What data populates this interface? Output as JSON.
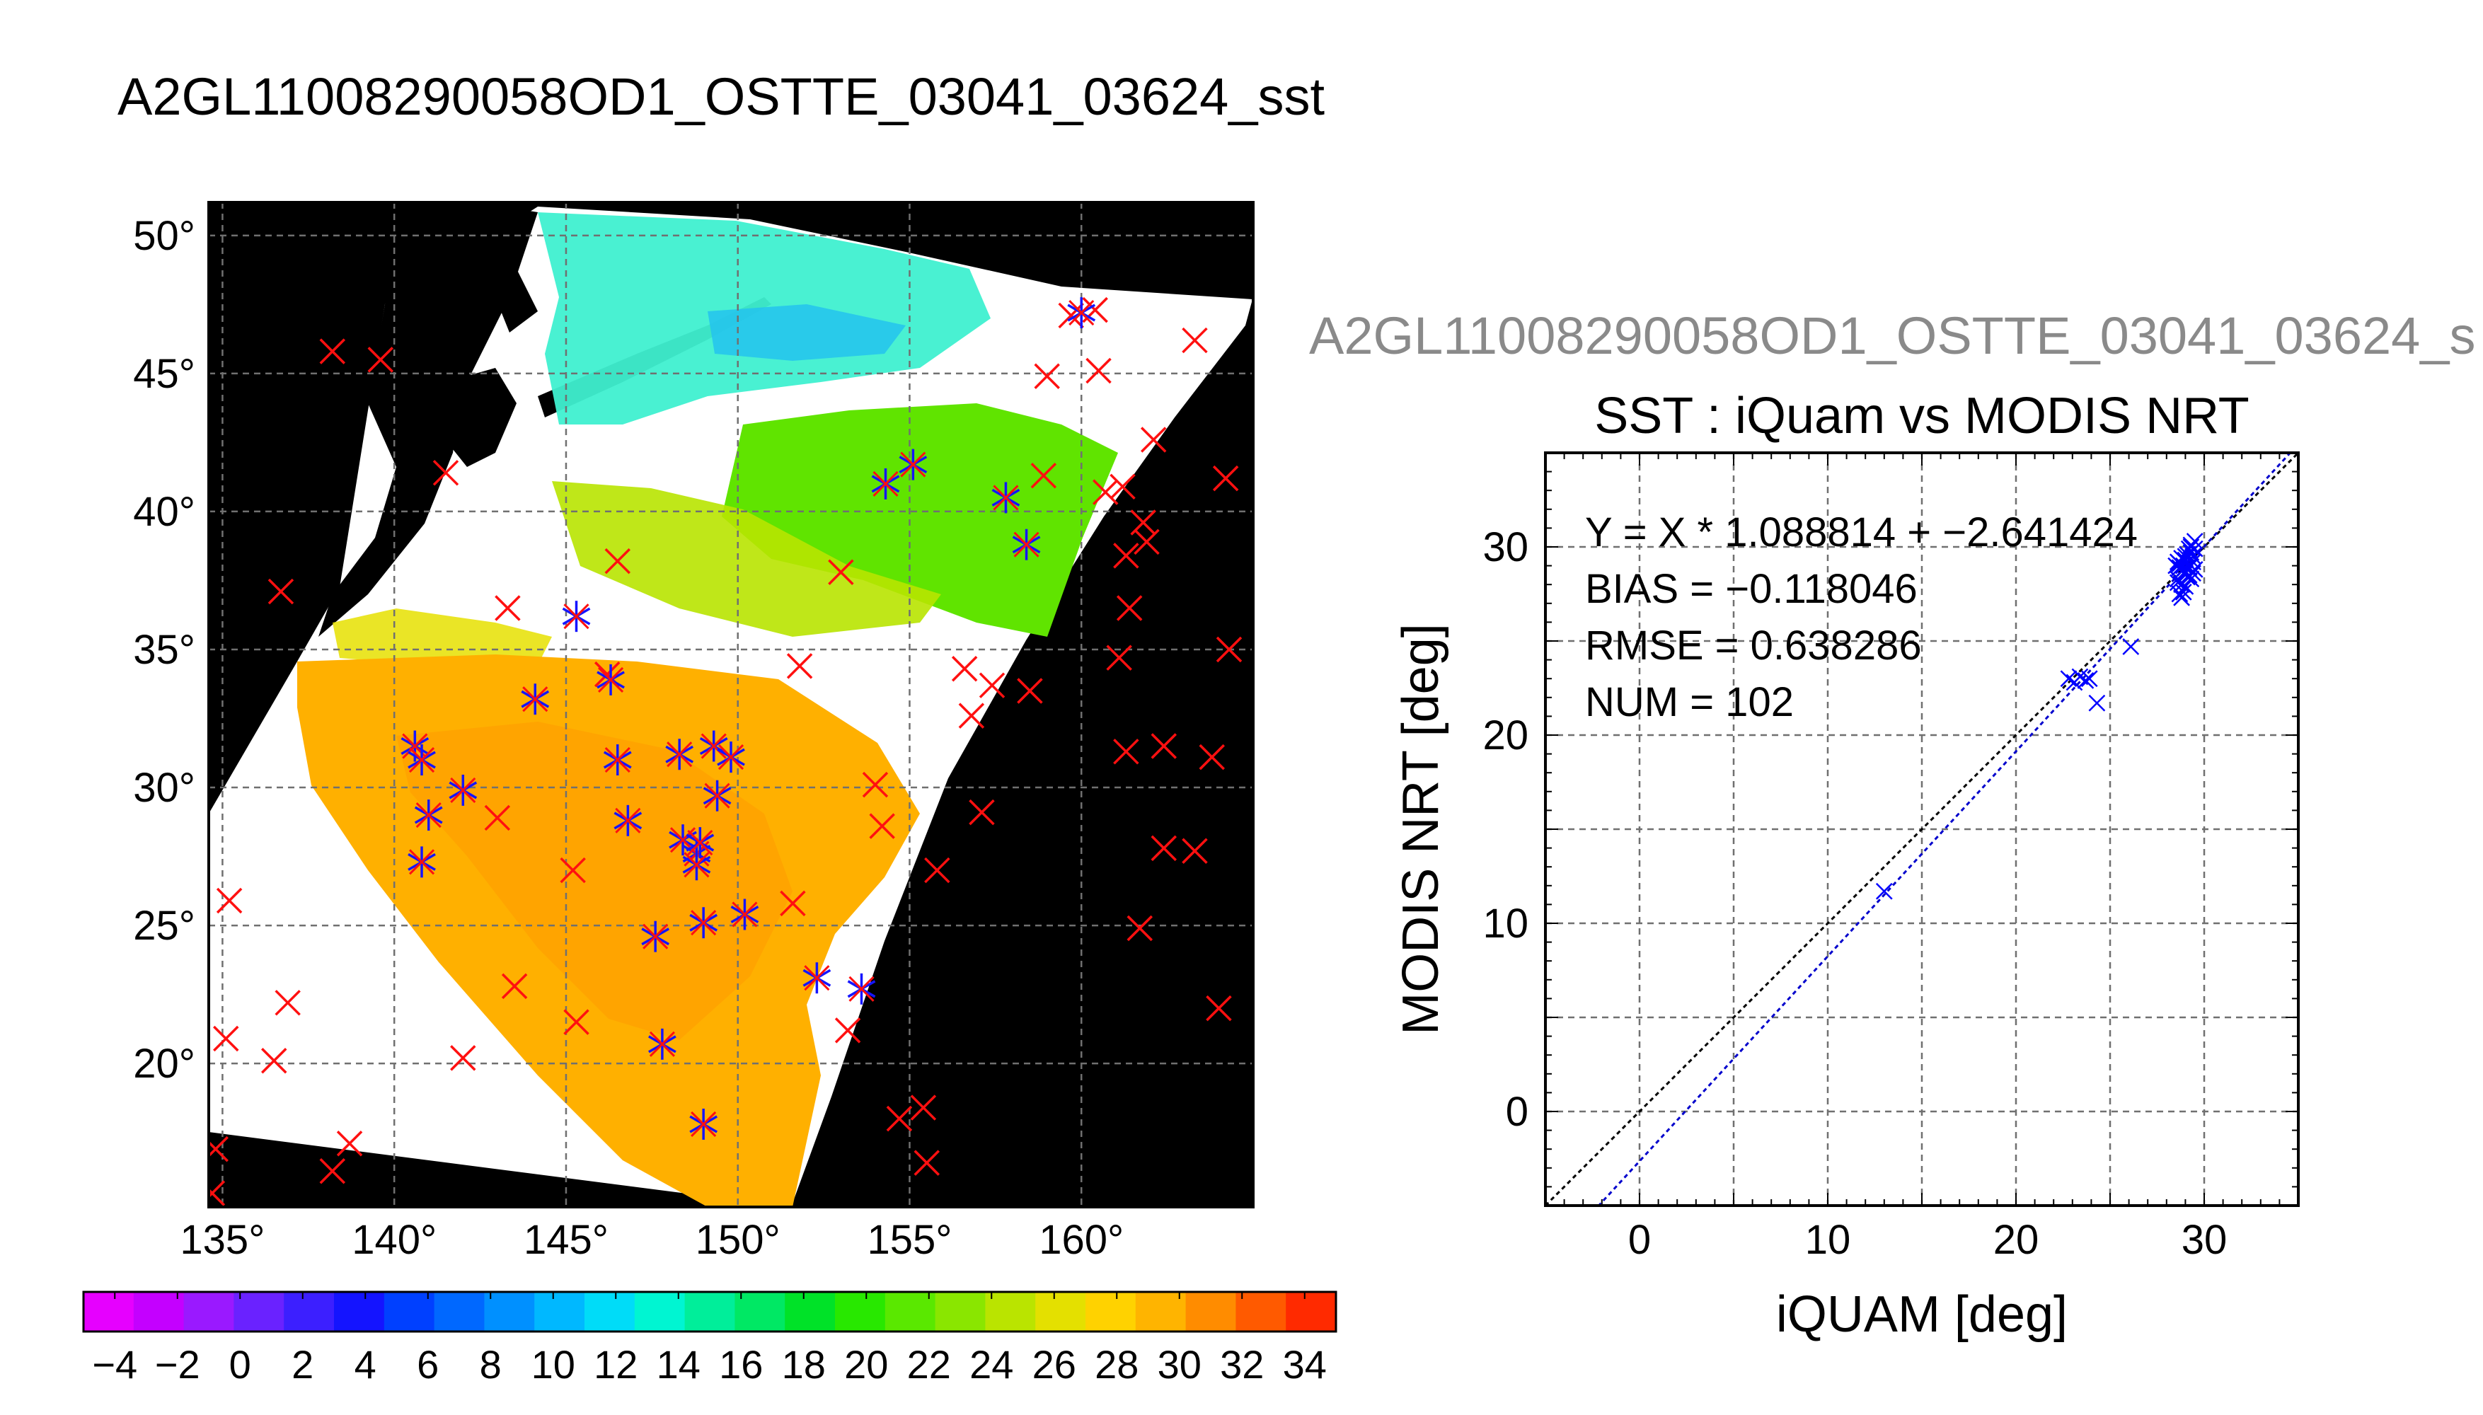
{
  "header": {
    "title": "A2GL11008290058OD1_OSTTE_03041_03624_sst"
  },
  "chart_data": [
    {
      "type": "heatmap",
      "title": "",
      "lon_ticks": [
        "135°",
        "140°",
        "145°",
        "150°",
        "155°",
        "160°"
      ],
      "lat_ticks": [
        "50°",
        "45°",
        "40°",
        "35°",
        "30°",
        "25°",
        "20°"
      ],
      "lon_values": [
        135,
        140,
        145,
        150,
        155,
        160
      ],
      "lat_values": [
        50,
        45,
        40,
        35,
        30,
        25,
        20
      ],
      "lon_range": [
        134.6,
        165.0
      ],
      "lat_range": [
        14.8,
        51.2
      ],
      "grid": true,
      "land_color": "#000000",
      "nodata_color": "#ffffff",
      "markers": {
        "red_x": [
          [
            138.2,
            45.8
          ],
          [
            139.6,
            45.5
          ],
          [
            141.5,
            41.4
          ],
          [
            136.7,
            37.1
          ],
          [
            135.2,
            25.9
          ],
          [
            135.1,
            20.9
          ],
          [
            136.9,
            22.2
          ],
          [
            136.5,
            20.1
          ],
          [
            138.2,
            16.1
          ],
          [
            138.7,
            17.1
          ],
          [
            134.8,
            16.9
          ],
          [
            134.7,
            15.3
          ],
          [
            142.0,
            20.2
          ],
          [
            143.3,
            36.5
          ],
          [
            146.5,
            38.2
          ],
          [
            143.0,
            28.9
          ],
          [
            143.5,
            22.8
          ],
          [
            145.2,
            27.0
          ],
          [
            145.3,
            21.5
          ],
          [
            146.2,
            34.1
          ],
          [
            151.8,
            34.4
          ],
          [
            151.6,
            25.8
          ],
          [
            154.0,
            30.1
          ],
          [
            154.2,
            28.6
          ],
          [
            153.0,
            37.8
          ],
          [
            153.2,
            21.2
          ],
          [
            154.7,
            18.0
          ],
          [
            155.4,
            18.4
          ],
          [
            155.5,
            16.4
          ],
          [
            155.8,
            27.0
          ],
          [
            156.6,
            34.3
          ],
          [
            156.8,
            32.6
          ],
          [
            157.1,
            29.1
          ],
          [
            157.4,
            33.7
          ],
          [
            158.5,
            33.5
          ],
          [
            158.9,
            41.3
          ],
          [
            159.0,
            44.9
          ],
          [
            159.7,
            47.1
          ],
          [
            160.4,
            47.3
          ],
          [
            160.5,
            45.1
          ],
          [
            160.7,
            40.7
          ],
          [
            161.2,
            40.9
          ],
          [
            161.3,
            38.4
          ],
          [
            161.8,
            39.6
          ],
          [
            161.9,
            38.9
          ],
          [
            162.1,
            42.6
          ],
          [
            163.3,
            46.2
          ],
          [
            164.2,
            41.2
          ],
          [
            161.1,
            34.7
          ],
          [
            161.4,
            36.5
          ],
          [
            161.3,
            31.3
          ],
          [
            162.4,
            31.5
          ],
          [
            162.4,
            27.8
          ],
          [
            163.3,
            27.7
          ],
          [
            163.8,
            31.1
          ],
          [
            161.7,
            24.9
          ],
          [
            164.0,
            22.0
          ],
          [
            164.3,
            35.0
          ]
        ],
        "blue_star": [
          [
            140.6,
            31.5
          ],
          [
            140.8,
            31.0
          ],
          [
            141.0,
            29.0
          ],
          [
            140.8,
            27.3
          ],
          [
            142.0,
            29.9
          ],
          [
            144.1,
            33.2
          ],
          [
            145.3,
            36.2
          ],
          [
            146.3,
            33.9
          ],
          [
            146.5,
            31.0
          ],
          [
            146.8,
            28.8
          ],
          [
            147.6,
            24.6
          ],
          [
            147.8,
            20.7
          ],
          [
            148.3,
            31.2
          ],
          [
            148.4,
            28.1
          ],
          [
            148.8,
            27.6
          ],
          [
            148.8,
            27.2
          ],
          [
            148.9,
            28.0
          ],
          [
            149.0,
            25.1
          ],
          [
            149.0,
            17.8
          ],
          [
            149.3,
            31.5
          ],
          [
            149.4,
            29.7
          ],
          [
            149.8,
            31.1
          ],
          [
            150.2,
            25.4
          ],
          [
            152.3,
            23.1
          ],
          [
            153.6,
            22.7
          ],
          [
            154.3,
            41.0
          ],
          [
            155.1,
            41.7
          ],
          [
            157.8,
            40.5
          ],
          [
            158.4,
            38.8
          ],
          [
            160.0,
            47.2
          ]
        ]
      },
      "colorbar": {
        "ticks": [
          "−4",
          "−2",
          "0",
          "2",
          "4",
          "6",
          "8",
          "10",
          "12",
          "14",
          "16",
          "18",
          "20",
          "22",
          "24",
          "26",
          "28",
          "30",
          "32",
          "34"
        ],
        "range": [
          -5,
          35
        ],
        "colors": [
          "#e600ff",
          "#c400ff",
          "#9a19ff",
          "#6a22ff",
          "#3c1fff",
          "#1414ff",
          "#0040ff",
          "#0068ff",
          "#0090ff",
          "#00b8ff",
          "#00dcf8",
          "#00f5d2",
          "#00ee9a",
          "#00e864",
          "#00e228",
          "#28e800",
          "#5ae800",
          "#8ae600",
          "#bae400",
          "#e4e000",
          "#ffd200",
          "#ffb400",
          "#ff8c00",
          "#ff5a00",
          "#ff2a00"
        ]
      }
    },
    {
      "type": "scatter",
      "suptitle": "A2GL11008290058OD1_OSTTE_03041_03624_s",
      "title": "SST : iQuam vs MODIS NRT",
      "xlabel": "iQUAM [deg]",
      "ylabel": "MODIS NRT [deg]",
      "xlim": [
        -5,
        35
      ],
      "ylim": [
        -5,
        35
      ],
      "x_ticks": [
        0,
        10,
        20,
        30
      ],
      "y_ticks": [
        0,
        10,
        20,
        30
      ],
      "grid": true,
      "annotations": [
        "Y = X * 1.088814 + −2.641424",
        "BIAS = −0.118046",
        "RMSE = 0.638286",
        "NUM = 102"
      ],
      "fit": {
        "slope": 1.088814,
        "intercept": -2.641424,
        "color": "#0000cc"
      },
      "identity_line": {
        "color": "#000000"
      },
      "points": {
        "x": [
          13.0,
          22.8,
          23.1,
          23.4,
          23.7,
          23.9,
          24.3,
          26.1,
          28.5,
          28.6,
          28.7,
          28.8,
          28.9,
          29.0,
          29.1,
          29.2,
          29.3,
          29.4,
          29.5,
          28.6,
          28.7,
          28.9,
          29.0,
          29.2,
          29.3,
          29.4,
          29.5,
          28.7,
          28.9,
          29.1,
          29.3,
          29.5,
          28.8,
          29.0,
          29.2,
          29.4,
          28.6,
          28.8,
          29.0,
          29.3
        ],
        "y": [
          11.7,
          23.0,
          22.8,
          23.1,
          22.9,
          23.0,
          21.7,
          24.7,
          29.0,
          28.3,
          27.5,
          29.4,
          28.8,
          27.9,
          29.6,
          28.5,
          30.1,
          29.2,
          28.8,
          28.1,
          29.1,
          27.6,
          28.6,
          29.9,
          28.3,
          29.5,
          30.3,
          28.9,
          29.0,
          28.4,
          29.7,
          29.9,
          27.3,
          29.3,
          28.9,
          28.6,
          29.2,
          28.0,
          29.5,
          30.0
        ],
        "color": "#0000ff"
      }
    }
  ]
}
